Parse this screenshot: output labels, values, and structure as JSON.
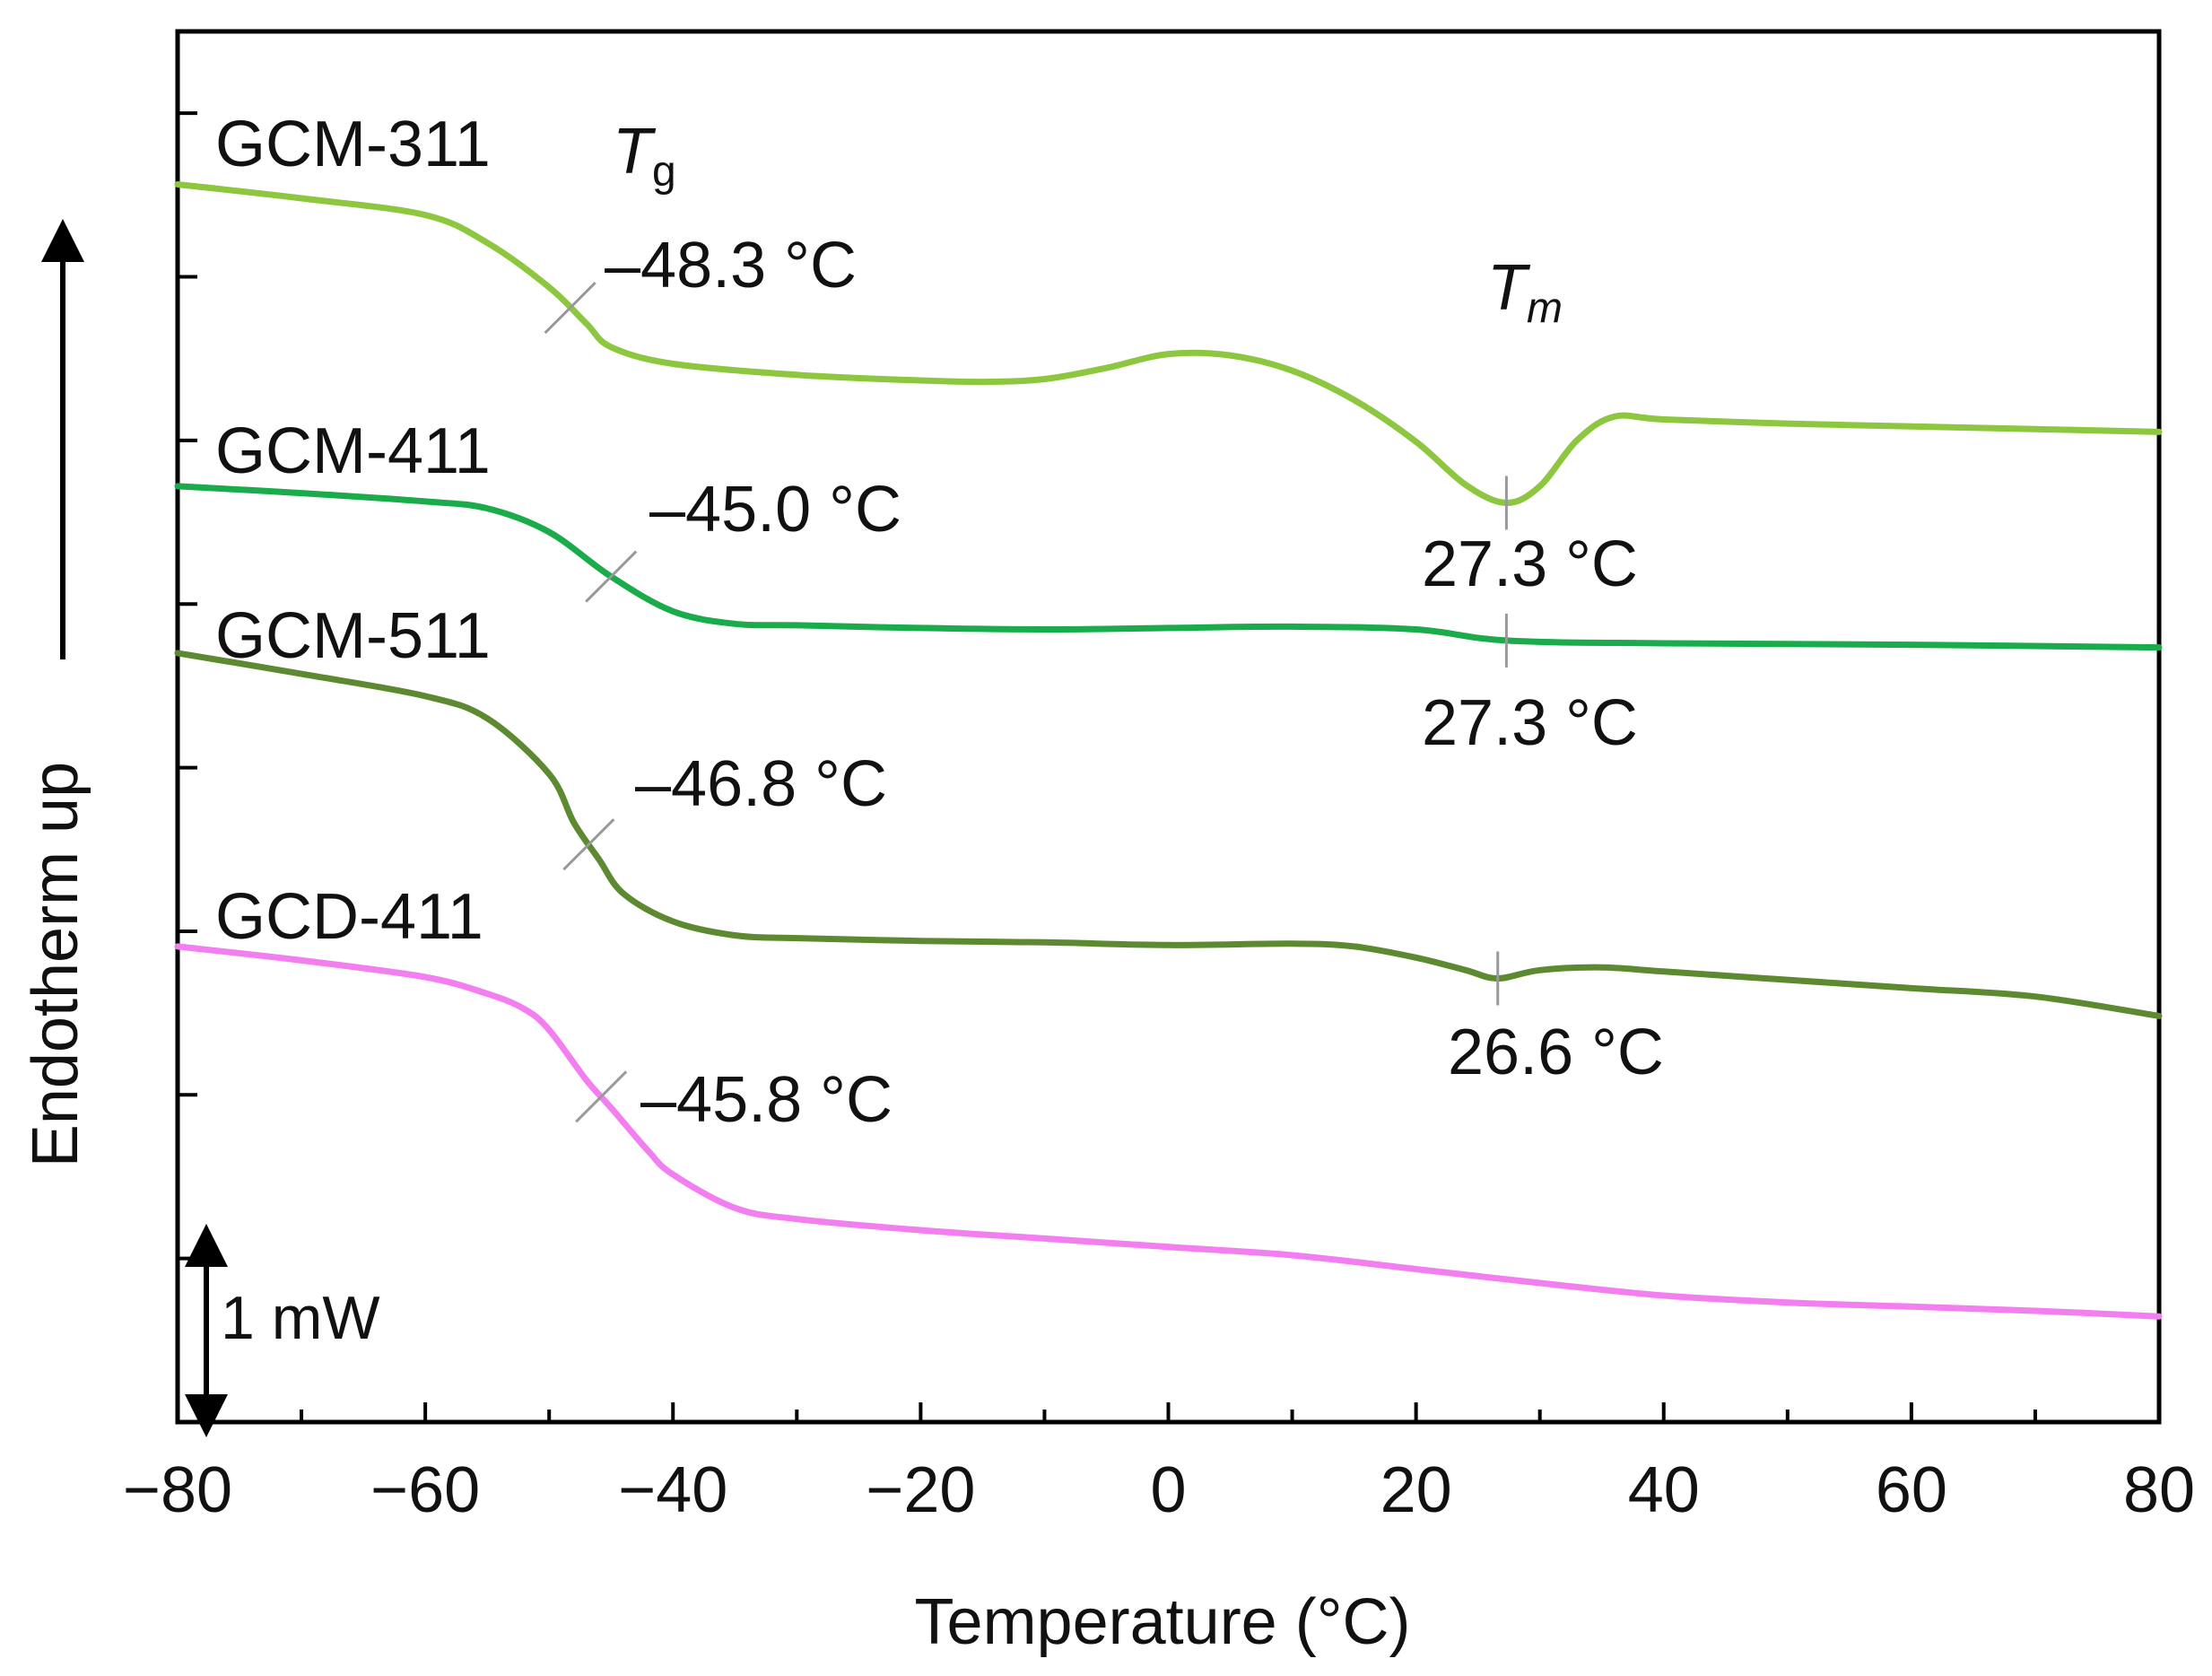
{
  "chart_data": {
    "type": "line",
    "title": "",
    "xlabel": "Temperature (°C)",
    "ylabel": "Endotherm up",
    "xlim": [
      -80,
      80
    ],
    "ylim": [
      0,
      100
    ],
    "y_units": "arbitrary vertical offset (plot-height percent)",
    "xticks": [
      -80,
      -60,
      -40,
      -20,
      0,
      20,
      40,
      60,
      80
    ],
    "xtick_labels": [
      "−80",
      "−60",
      "−40",
      "−20",
      "0",
      "20",
      "40",
      "60",
      "80"
    ],
    "minor_x_step": 10,
    "y_tick_count": 8,
    "grid": false,
    "scale_bar": {
      "label": "1 mW"
    },
    "direction_arrow": "up",
    "series": [
      {
        "name": "GCM-311",
        "color": "#8dc63f",
        "x": [
          -80,
          -70,
          -60,
          -55,
          -50,
          -47,
          -45,
          -40,
          -30,
          -20,
          -15,
          -10,
          -5,
          0,
          5,
          10,
          15,
          20,
          24,
          27.3,
          30,
          33,
          36,
          40,
          50,
          60,
          70,
          80
        ],
        "y": [
          89.0,
          88.0,
          86.8,
          84.8,
          81.6,
          79.0,
          77.3,
          76.1,
          75.3,
          74.9,
          74.8,
          75.0,
          75.8,
          76.8,
          76.7,
          75.6,
          73.5,
          70.5,
          67.4,
          66.1,
          67.3,
          70.6,
          72.3,
          72.1,
          71.8,
          71.6,
          71.4,
          71.2
        ]
      },
      {
        "name": "GCM-411",
        "color": "#1aab4b",
        "x": [
          -80,
          -70,
          -60,
          -55,
          -50,
          -45,
          -40,
          -35,
          -30,
          -20,
          -10,
          0,
          10,
          20,
          27.3,
          40,
          60,
          80
        ],
        "y": [
          67.3,
          66.8,
          66.2,
          65.7,
          64.0,
          60.8,
          58.3,
          57.4,
          57.3,
          57.1,
          57.0,
          57.1,
          57.2,
          57.0,
          56.2,
          56.0,
          55.9,
          55.7
        ]
      },
      {
        "name": "GCM-511",
        "color": "#5d8a30",
        "x": [
          -80,
          -70,
          -60,
          -55,
          -50,
          -48,
          -46,
          -44,
          -40,
          -35,
          -30,
          -20,
          -10,
          0,
          10,
          15,
          20,
          24,
          26.6,
          30,
          35,
          40,
          50,
          60,
          70,
          80
        ],
        "y": [
          55.3,
          53.8,
          52.2,
          50.6,
          46.6,
          43.1,
          40.5,
          38.0,
          36.0,
          35.0,
          34.8,
          34.6,
          34.5,
          34.3,
          34.4,
          34.2,
          33.4,
          32.5,
          31.9,
          32.5,
          32.7,
          32.4,
          31.8,
          31.2,
          30.6,
          29.2
        ]
      },
      {
        "name": "GCD-411",
        "color": "#f27ef0",
        "x": [
          -80,
          -70,
          -60,
          -55,
          -52,
          -50,
          -47,
          -45,
          -42,
          -40,
          -35,
          -30,
          -20,
          -10,
          0,
          10,
          20,
          30,
          40,
          50,
          60,
          70,
          80
        ],
        "y": [
          34.2,
          33.2,
          32.0,
          30.8,
          29.7,
          28.2,
          24.6,
          22.6,
          19.5,
          17.8,
          15.4,
          14.6,
          13.8,
          13.2,
          12.6,
          12.0,
          11.0,
          10.0,
          9.1,
          8.6,
          8.3,
          8.0,
          7.6
        ]
      }
    ],
    "annotations": {
      "tg_header": {
        "symbol": "T",
        "subscript": "g",
        "x": -43
      },
      "tm_header": {
        "symbol": "T",
        "subscript": "m",
        "x": 29
      },
      "tg_values": [
        {
          "series": "GCM-311",
          "label": "–48.3 °C",
          "x": -48.3
        },
        {
          "series": "GCM-411",
          "label": "–45.0 °C",
          "x": -45.0
        },
        {
          "series": "GCM-511",
          "label": "–46.8 °C",
          "x": -46.8
        },
        {
          "series": "GCD-411",
          "label": "–45.8 °C",
          "x": -45.8
        }
      ],
      "tm_values": [
        {
          "series": "GCM-311",
          "label": "27.3 °C",
          "x": 27.3
        },
        {
          "series": "GCM-411",
          "label": "27.3 °C",
          "x": 27.3
        },
        {
          "series": "GCM-511",
          "label": "26.6 °C",
          "x": 26.6
        }
      ]
    }
  }
}
